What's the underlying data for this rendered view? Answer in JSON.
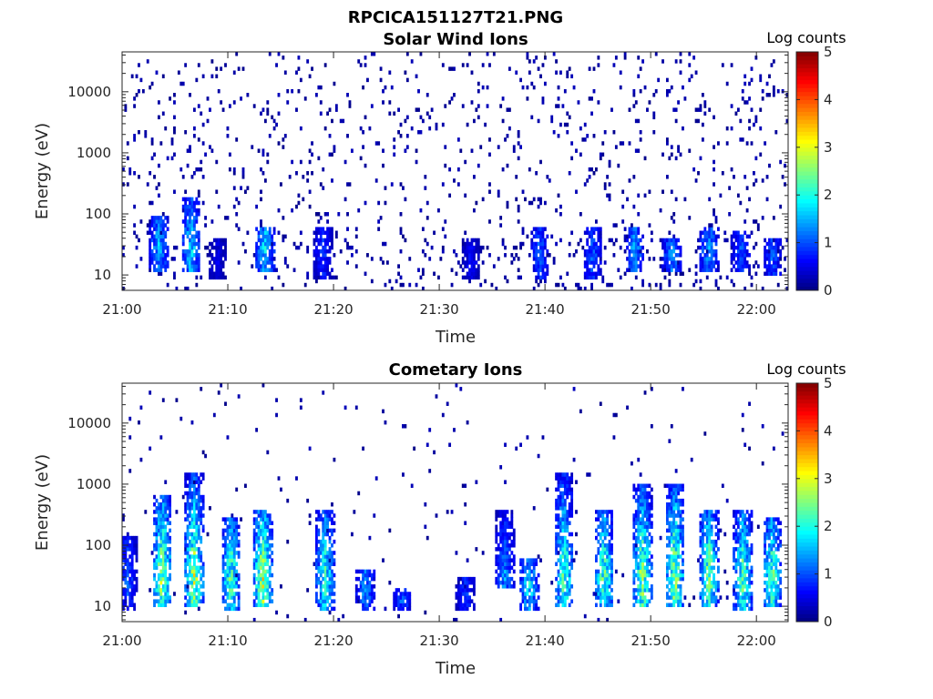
{
  "figure_title": "RPCICA151127T21.PNG",
  "colors": {
    "colormap": [
      "#00007f",
      "#0000ff",
      "#007fff",
      "#00ffff",
      "#7fff7f",
      "#ffff00",
      "#ff7f00",
      "#ff0000",
      "#7f0000"
    ],
    "axis": "#262626",
    "background": "#ffffff"
  },
  "chart_data": [
    {
      "type": "heatmap",
      "title": "Solar Wind Ions",
      "xlabel": "Time",
      "ylabel": "Energy (eV)",
      "x_range": [
        "21:00",
        "22:03"
      ],
      "x_ticks": [
        "21:00",
        "21:10",
        "21:20",
        "21:30",
        "21:40",
        "21:50",
        "22:00"
      ],
      "y_scale": "log",
      "y_range": [
        5.6,
        45000
      ],
      "y_ticks": [
        10,
        100,
        1000,
        10000
      ],
      "y_tick_labels": [
        "10",
        "100",
        "1000",
        "10000"
      ],
      "colorbar": {
        "label": "Log counts",
        "range": [
          0,
          5
        ],
        "ticks": [
          "0",
          "1",
          "2",
          "3",
          "4",
          "5"
        ]
      },
      "background_noise_log_counts": 0.1,
      "streaks": [
        {
          "time_min": 3.5,
          "emin": 12,
          "emax": 90,
          "peak": 1.7
        },
        {
          "time_min": 6.5,
          "emin": 12,
          "emax": 180,
          "peak": 1.9
        },
        {
          "time_min": 9.0,
          "emin": 8,
          "emax": 40,
          "peak": 0.6
        },
        {
          "time_min": 13.5,
          "emin": 12,
          "emax": 60,
          "peak": 2.0
        },
        {
          "time_min": 19.0,
          "emin": 8,
          "emax": 60,
          "peak": 1.0
        },
        {
          "time_min": 33.0,
          "emin": 8,
          "emax": 40,
          "peak": 0.7
        },
        {
          "time_min": 39.5,
          "emin": 8,
          "emax": 60,
          "peak": 1.2
        },
        {
          "time_min": 44.5,
          "emin": 8,
          "emax": 60,
          "peak": 1.2
        },
        {
          "time_min": 48.5,
          "emin": 12,
          "emax": 60,
          "peak": 1.6
        },
        {
          "time_min": 52.0,
          "emin": 12,
          "emax": 40,
          "peak": 1.5
        },
        {
          "time_min": 55.5,
          "emin": 12,
          "emax": 60,
          "peak": 1.6
        },
        {
          "time_min": 58.5,
          "emin": 12,
          "emax": 50,
          "peak": 1.2
        },
        {
          "time_min": 61.5,
          "emin": 10,
          "emax": 40,
          "peak": 1.2
        }
      ]
    },
    {
      "type": "heatmap",
      "title": "Cometary Ions",
      "xlabel": "Time",
      "ylabel": "Energy (eV)",
      "x_range": [
        "21:00",
        "22:03"
      ],
      "x_ticks": [
        "21:00",
        "21:10",
        "21:20",
        "21:30",
        "21:40",
        "21:50",
        "22:00"
      ],
      "y_scale": "log",
      "y_range": [
        5.6,
        45000
      ],
      "y_ticks": [
        10,
        100,
        1000,
        10000
      ],
      "y_tick_labels": [
        "10",
        "100",
        "1000",
        "10000"
      ],
      "colorbar": {
        "label": "Log counts",
        "range": [
          0,
          5
        ],
        "ticks": [
          "0",
          "1",
          "2",
          "3",
          "4",
          "5"
        ]
      },
      "background_noise_log_counts": 0.02,
      "streaks": [
        {
          "time_min": 0.5,
          "emin": 8,
          "emax": 150,
          "peak": 1.2
        },
        {
          "time_min": 3.8,
          "emin": 10,
          "emax": 700,
          "peak": 3.0
        },
        {
          "time_min": 6.8,
          "emin": 10,
          "emax": 1500,
          "peak": 3.0
        },
        {
          "time_min": 10.3,
          "emin": 8,
          "emax": 300,
          "peak": 2.5
        },
        {
          "time_min": 13.3,
          "emin": 10,
          "emax": 400,
          "peak": 3.2
        },
        {
          "time_min": 19.2,
          "emin": 8,
          "emax": 400,
          "peak": 2.3
        },
        {
          "time_min": 23.0,
          "emin": 8,
          "emax": 40,
          "peak": 1.5
        },
        {
          "time_min": 26.5,
          "emin": 8,
          "emax": 20,
          "peak": 1.2
        },
        {
          "time_min": 32.5,
          "emin": 8,
          "emax": 30,
          "peak": 1.0
        },
        {
          "time_min": 36.2,
          "emin": 20,
          "emax": 400,
          "peak": 1.5
        },
        {
          "time_min": 38.5,
          "emin": 8,
          "emax": 60,
          "peak": 2.0
        },
        {
          "time_min": 41.8,
          "emin": 10,
          "emax": 1500,
          "peak": 2.5
        },
        {
          "time_min": 45.6,
          "emin": 10,
          "emax": 400,
          "peak": 2.6
        },
        {
          "time_min": 49.2,
          "emin": 10,
          "emax": 1000,
          "peak": 2.8
        },
        {
          "time_min": 52.3,
          "emin": 10,
          "emax": 1000,
          "peak": 3.0
        },
        {
          "time_min": 55.5,
          "emin": 10,
          "emax": 400,
          "peak": 2.8
        },
        {
          "time_min": 58.7,
          "emin": 8,
          "emax": 400,
          "peak": 2.5
        },
        {
          "time_min": 61.5,
          "emin": 10,
          "emax": 300,
          "peak": 2.6
        }
      ]
    }
  ]
}
